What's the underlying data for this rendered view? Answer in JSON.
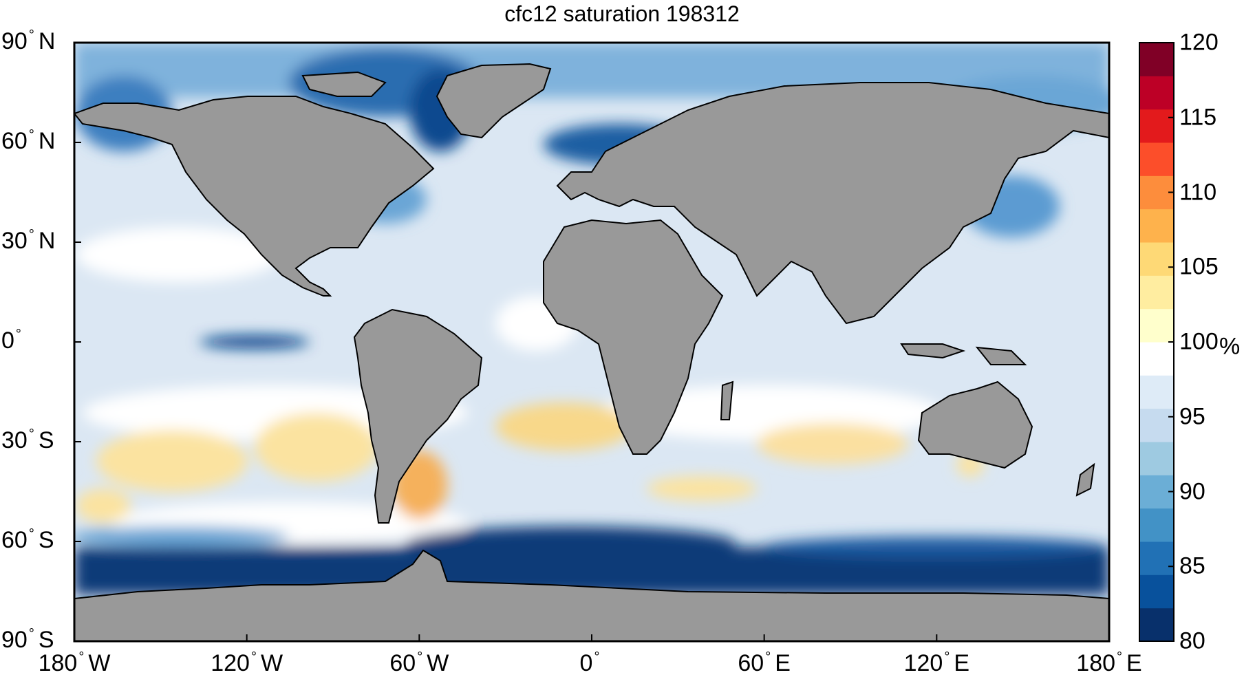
{
  "title": "cfc12 saturation 198312",
  "lat_ticks": [
    {
      "value": 90,
      "num": "90",
      "hem": "N"
    },
    {
      "value": 60,
      "num": "60",
      "hem": "N"
    },
    {
      "value": 30,
      "num": "30",
      "hem": "N"
    },
    {
      "value": 0,
      "num": "0",
      "hem": ""
    },
    {
      "value": -30,
      "num": "30",
      "hem": "S"
    },
    {
      "value": -60,
      "num": "60",
      "hem": "S"
    },
    {
      "value": -90,
      "num": "90",
      "hem": "S"
    }
  ],
  "lon_ticks": [
    {
      "value": -180,
      "num": "180",
      "hem": "W"
    },
    {
      "value": -120,
      "num": "120",
      "hem": "W"
    },
    {
      "value": -60,
      "num": "60",
      "hem": "W"
    },
    {
      "value": 0,
      "num": "0",
      "hem": ""
    },
    {
      "value": 60,
      "num": "60",
      "hem": "E"
    },
    {
      "value": 120,
      "num": "120",
      "hem": "E"
    },
    {
      "value": 180,
      "num": "180",
      "hem": "E"
    }
  ],
  "colorbar": {
    "min": 80,
    "max": 120,
    "ticks": [
      80,
      85,
      90,
      95,
      100,
      105,
      110,
      115,
      120
    ],
    "unit": "%",
    "colors": [
      "#08306b",
      "#08519c",
      "#2171b5",
      "#4292c6",
      "#6baed6",
      "#9ecae1",
      "#c6dbef",
      "#deebf7",
      "#ffffff",
      "#ffffcc",
      "#ffeda0",
      "#fed976",
      "#feb24c",
      "#fd8d3c",
      "#fc4e2a",
      "#e31a1c",
      "#bd0026",
      "#800026"
    ]
  },
  "colors": {
    "land": "#999999",
    "ocean_base": "#dbe7f3",
    "deep_blue": "#0a3a78",
    "mid_blue": "#5d9cd0",
    "light_blue": "#b9d4ec",
    "white": "#ffffff",
    "yellow": "#fbe3a0",
    "orange": "#f5b15c"
  }
}
